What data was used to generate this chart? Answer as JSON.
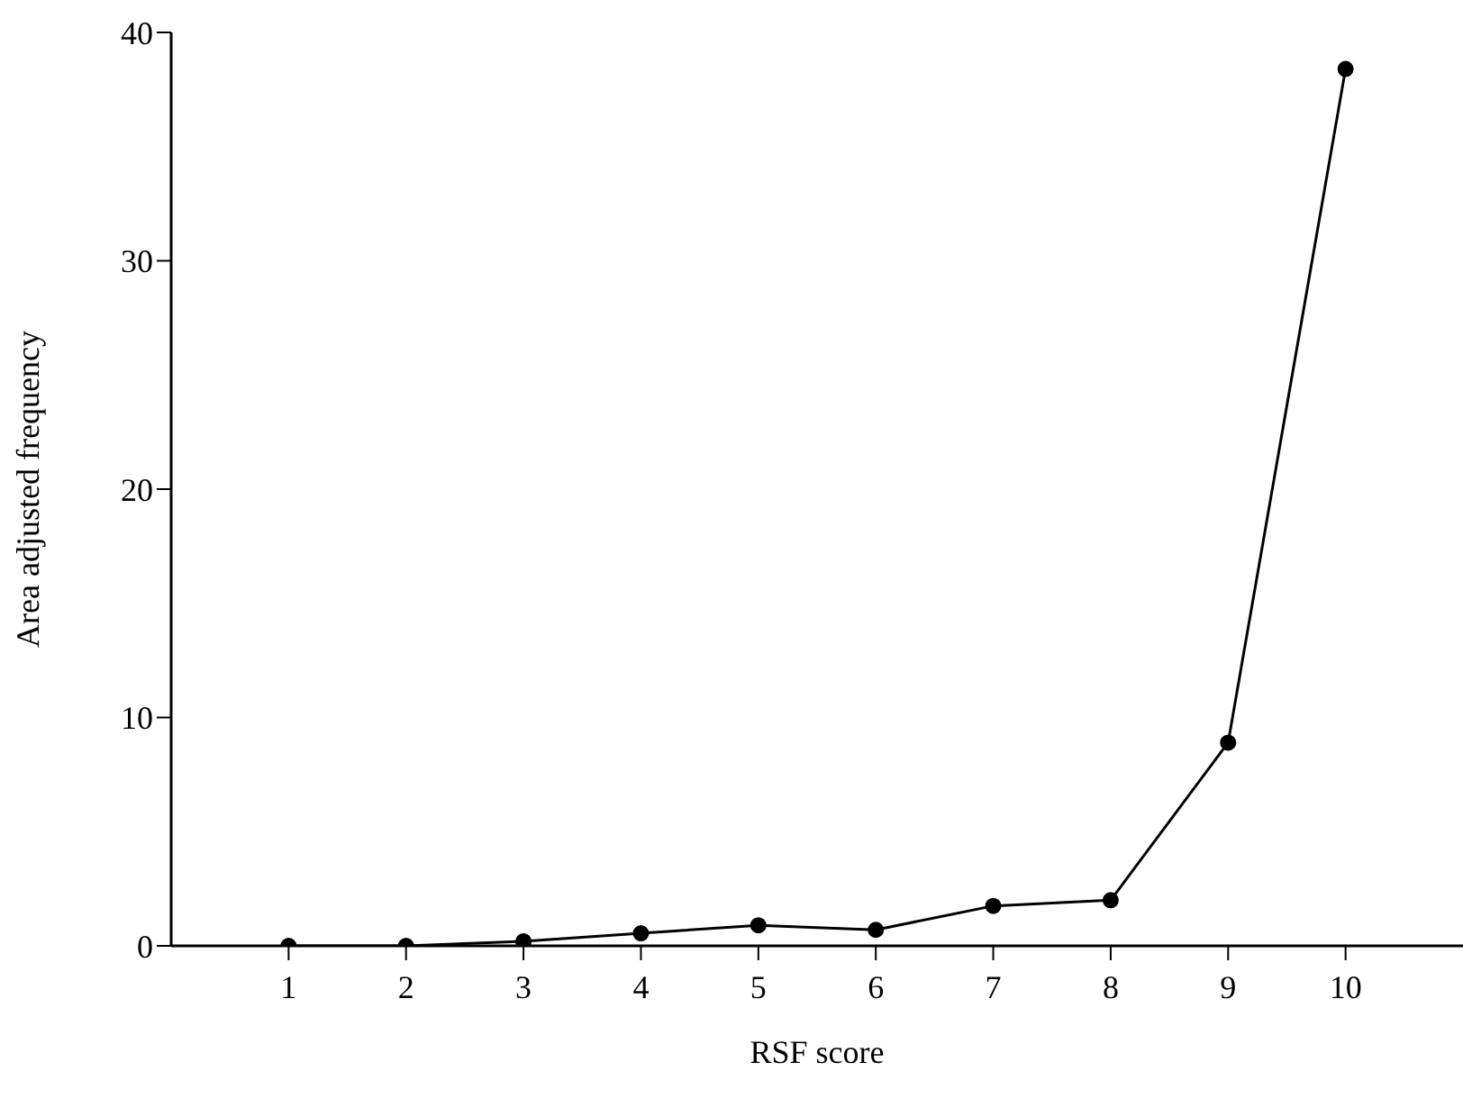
{
  "chart_data": {
    "type": "line",
    "xlabel": "RSF score",
    "ylabel": "Area adjusted frequency",
    "x": [
      1,
      2,
      3,
      4,
      5,
      6,
      7,
      8,
      9,
      10
    ],
    "series": [
      {
        "color": "#000000",
        "values": [
          0,
          0,
          0.2,
          0.55,
          0.9,
          0.7,
          1.75,
          2.0,
          8.9,
          38.4
        ]
      }
    ],
    "xlim": [
      0,
      11
    ],
    "xticks": [
      1,
      2,
      3,
      4,
      5,
      6,
      7,
      8,
      9,
      10
    ],
    "ylim": [
      0,
      40
    ],
    "yticks": [
      0,
      10,
      20,
      30,
      40
    ],
    "grid": false,
    "legend": false,
    "marker": "circle",
    "line_style": "solid"
  }
}
